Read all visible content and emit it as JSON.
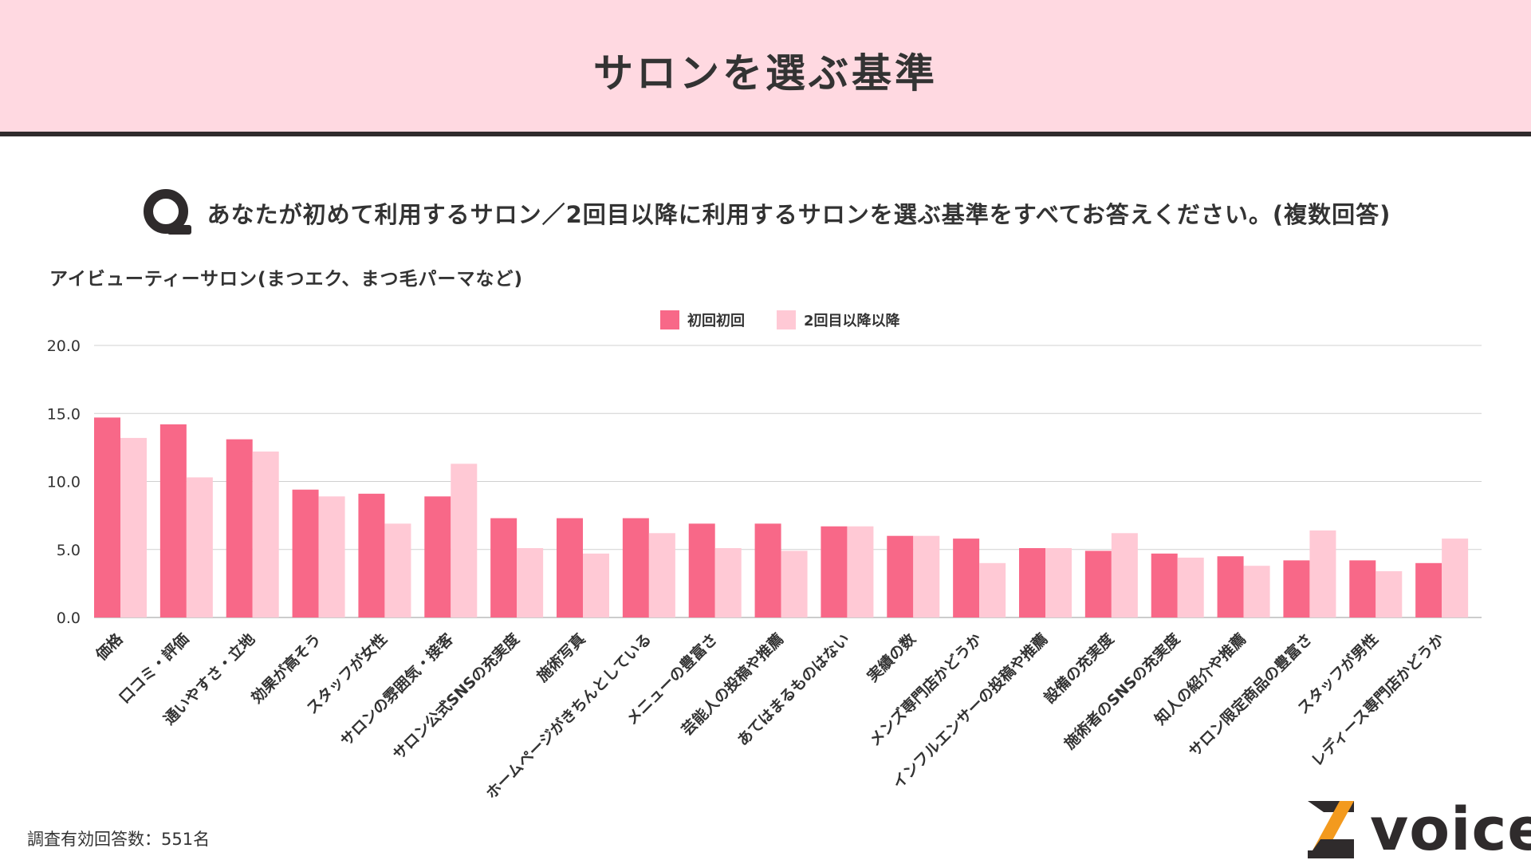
{
  "header": {
    "title": "サロンを選ぶ基準"
  },
  "question": {
    "text": "あなたが初めて利用するサロン／2回目以降に利用するサロンを選ぶ基準をすべてお答えください。(複数回答)"
  },
  "footer": {
    "note": "調査有効回答数：551名"
  },
  "logo": {
    "text": "voice"
  },
  "colors": {
    "header_bg": "#ffd9e1",
    "series_first": "#f86888",
    "series_repeat": "#ffc9d5",
    "logo_orange": "#f39a1e",
    "logo_dark": "#2f2b2c"
  },
  "chart_data": {
    "type": "bar",
    "title": "アイビューティーサロン(まつエク、まつ毛パーマなど)",
    "legend_position": "top-center",
    "grid": true,
    "ylim": [
      0,
      20
    ],
    "yticks": [
      "0.0",
      "5.0",
      "10.0",
      "15.0",
      "20.0"
    ],
    "categories": [
      "価格",
      "口コミ・評価",
      "通いやすさ・立地",
      "効果が高そう",
      "スタッフが女性",
      "サロンの雰囲気・接客",
      "サロン公式SNSの充実度",
      "施術写真",
      "ホームページがきちんとしている",
      "メニューの豊富さ",
      "芸能人の投稿や推薦",
      "あてはまるものはない",
      "実績の数",
      "メンズ専門店かどうか",
      "インフルエンサーの投稿や推薦",
      "設備の充実度",
      "施術者のSNSの充実度",
      "知人の紹介や推薦",
      "サロン限定商品の豊富さ",
      "スタッフが男性",
      "レディース専門店かどうか"
    ],
    "series": [
      {
        "name": "初回初回",
        "values": [
          14.7,
          14.2,
          13.1,
          9.4,
          9.1,
          8.9,
          7.3,
          7.3,
          7.3,
          6.9,
          6.9,
          6.7,
          6.0,
          5.8,
          5.1,
          4.9,
          4.7,
          4.5,
          4.2,
          4.2,
          4.0
        ]
      },
      {
        "name": "2回目以降以降",
        "values": [
          13.2,
          10.3,
          12.2,
          8.9,
          6.9,
          11.3,
          5.1,
          4.7,
          6.2,
          5.1,
          4.9,
          6.7,
          6.0,
          4.0,
          5.1,
          6.2,
          4.4,
          3.8,
          6.4,
          3.4,
          5.8
        ]
      }
    ]
  }
}
